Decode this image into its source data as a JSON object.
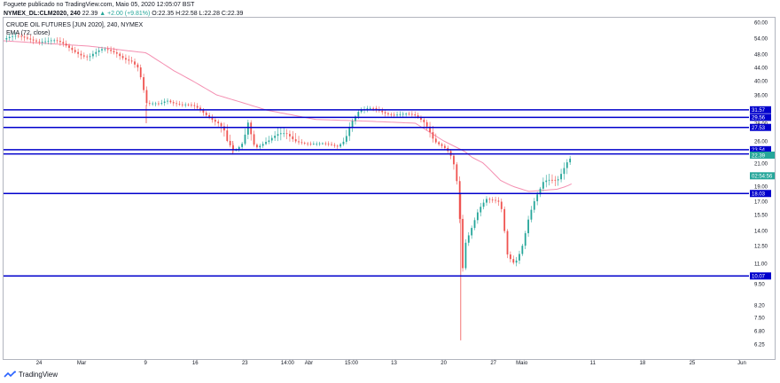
{
  "header": {
    "published": "Foguete publicado no TradingView.com, Maio 05, 2020 12:05:07 BST",
    "symbol": "NYMEX_DL:CLM2020, 240",
    "last": "22.39",
    "change": "▲ +2.00 (+9.81%)",
    "ohlc": "O:22.35 H:22.58 L:22.28 C:22.39"
  },
  "legend": {
    "title": "CRUDE OIL FUTURES [JUN 2020], 240, NYMEX",
    "indicator": "EMA (72, close)"
  },
  "footer": {
    "brand": "TradingView"
  },
  "colors": {
    "up": "#26a69a",
    "down": "#ef5350",
    "level_line": "#0000cc",
    "ema": "#f48fb1",
    "price_tag": "#26a69a",
    "axis_text": "#131722"
  },
  "chart_data": {
    "type": "candlestick",
    "title": "CRUDE OIL FUTURES [JUN 2020], 240, NYMEX",
    "y_ticks": [
      "60.00",
      "54.00",
      "48.00",
      "44.00",
      "40.00",
      "36.00",
      "32.00",
      "28.00",
      "26.00",
      "23.00",
      "21.00",
      "19.00",
      "17.00",
      "15.50",
      "14.00",
      "12.50",
      "11.00",
      "9.50",
      "8.20",
      "7.50",
      "6.80",
      "6.25"
    ],
    "y_tick_values": [
      60,
      54,
      48,
      44,
      40,
      36,
      32,
      28,
      26,
      23,
      21,
      19,
      17,
      15.5,
      14,
      12.5,
      11,
      9.5,
      8.2,
      7.5,
      6.8,
      6.25
    ],
    "x_ticks": [
      "24",
      "Mar",
      "9",
      "16",
      "23",
      "14:00",
      "Abr",
      "15:00",
      "13",
      "20",
      "27",
      "Maio",
      "11",
      "18",
      "25",
      "Jun"
    ],
    "x_tick_days": [
      -7,
      -1,
      8,
      15,
      22,
      28,
      31,
      37,
      43,
      50,
      57,
      61,
      71,
      78,
      85,
      92
    ],
    "x_range_days": [
      -12,
      93
    ],
    "horizontal_levels": [
      {
        "label": "31.57",
        "value": 31.57
      },
      {
        "label": "29.56",
        "value": 29.56
      },
      {
        "label": "27.53",
        "value": 27.53
      },
      {
        "label": "23.54",
        "value": 23.54
      },
      {
        "label": "22.59",
        "value": 22.59
      },
      {
        "label": "18.03",
        "value": 18.03
      },
      {
        "label": "10.07",
        "value": 10.07
      }
    ],
    "price_tags": [
      {
        "label": "22.39",
        "value": 22.39
      },
      {
        "label": "02:54:56",
        "value": 19.9
      }
    ],
    "price_anchors": [
      {
        "day": -12,
        "price": 53.5
      },
      {
        "day": -8,
        "price": 54.2
      },
      {
        "day": -5,
        "price": 52.5
      },
      {
        "day": -2,
        "price": 49.5
      },
      {
        "day": 0,
        "price": 47.5
      },
      {
        "day": 2,
        "price": 49.0
      },
      {
        "day": 4,
        "price": 48.5
      },
      {
        "day": 6,
        "price": 46.5
      },
      {
        "day": 7,
        "price": 43.5
      },
      {
        "day": 8.2,
        "price": 32.5
      },
      {
        "day": 10,
        "price": 33.5
      },
      {
        "day": 11,
        "price": 35.0
      },
      {
        "day": 13,
        "price": 33.0
      },
      {
        "day": 15,
        "price": 32.0
      },
      {
        "day": 17,
        "price": 30.0
      },
      {
        "day": 19,
        "price": 27.5
      },
      {
        "day": 20.5,
        "price": 22.5
      },
      {
        "day": 21.5,
        "price": 24.5
      },
      {
        "day": 22.5,
        "price": 28.5
      },
      {
        "day": 23.5,
        "price": 24.5
      },
      {
        "day": 25,
        "price": 26.0
      },
      {
        "day": 28,
        "price": 26.5
      },
      {
        "day": 30,
        "price": 26.0
      },
      {
        "day": 32,
        "price": 25.0
      },
      {
        "day": 35,
        "price": 24.5
      },
      {
        "day": 36.5,
        "price": 27.5
      },
      {
        "day": 38,
        "price": 31.0
      },
      {
        "day": 40,
        "price": 31.5
      },
      {
        "day": 42,
        "price": 31.0
      },
      {
        "day": 44,
        "price": 30.5
      },
      {
        "day": 46,
        "price": 29.5
      },
      {
        "day": 48,
        "price": 27.5
      },
      {
        "day": 50,
        "price": 24.5
      },
      {
        "day": 51,
        "price": 22.0
      },
      {
        "day": 52,
        "price": 18.5
      },
      {
        "day": 52.6,
        "price": 10.0
      },
      {
        "day": 53,
        "price": 12.5
      },
      {
        "day": 54,
        "price": 14.5
      },
      {
        "day": 55,
        "price": 16.5
      },
      {
        "day": 56,
        "price": 17.5
      },
      {
        "day": 57,
        "price": 17.0
      },
      {
        "day": 58,
        "price": 16.5
      },
      {
        "day": 59,
        "price": 11.5
      },
      {
        "day": 60,
        "price": 11.0
      },
      {
        "day": 61,
        "price": 12.5
      },
      {
        "day": 62,
        "price": 15.5
      },
      {
        "day": 63,
        "price": 17.5
      },
      {
        "day": 64,
        "price": 19.0
      },
      {
        "day": 66,
        "price": 19.5
      },
      {
        "day": 67,
        "price": 21.0
      },
      {
        "day": 68,
        "price": 22.5
      }
    ],
    "spikes": [
      {
        "day": 52.4,
        "high": 18.0,
        "low": 6.4
      },
      {
        "day": 8.1,
        "high": 33.0,
        "low": 28.0
      },
      {
        "day": 20.3,
        "high": 26.0,
        "low": 22.5
      }
    ],
    "ema_anchors": [
      {
        "day": -12,
        "price": 53.0
      },
      {
        "day": 0,
        "price": 51.0
      },
      {
        "day": 8,
        "price": 48.5
      },
      {
        "day": 12,
        "price": 43.0
      },
      {
        "day": 18,
        "price": 36.0
      },
      {
        "day": 25,
        "price": 31.5
      },
      {
        "day": 32,
        "price": 29.0
      },
      {
        "day": 40,
        "price": 28.5
      },
      {
        "day": 46,
        "price": 28.0
      },
      {
        "day": 50,
        "price": 26.0
      },
      {
        "day": 54,
        "price": 22.0
      },
      {
        "day": 58,
        "price": 19.5
      },
      {
        "day": 62,
        "price": 18.3
      },
      {
        "day": 66,
        "price": 18.6
      },
      {
        "day": 68,
        "price": 19.2
      }
    ]
  }
}
